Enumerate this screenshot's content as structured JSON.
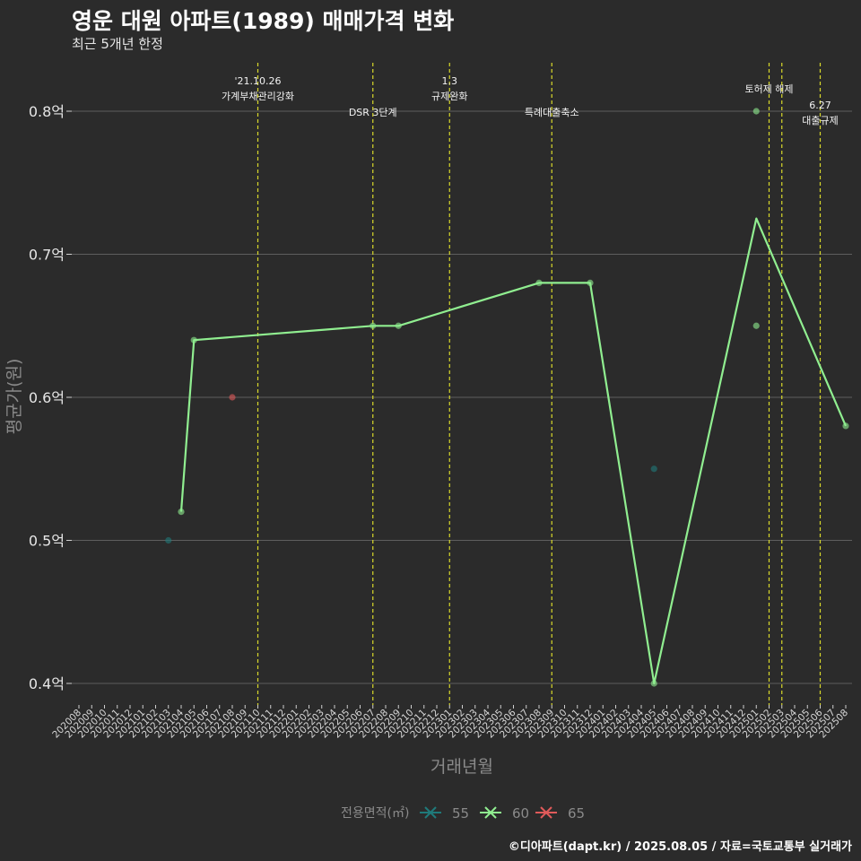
{
  "header": {
    "title": "영운 대원 아파트(1989) 매매가격 변화",
    "subtitle": "최근 5개년 한정"
  },
  "footer": {
    "credit": "©디아파트(dapt.kr) / 2025.08.05 / 자료=국토교통부 실거래가"
  },
  "colors": {
    "background": "#2b2b2b",
    "grid": "#5e5e5e",
    "event_line": "#d9d92b",
    "s55": "#1f7a7a",
    "s60": "#90ee90",
    "s65": "#e05a5a"
  },
  "chart_data": {
    "type": "line",
    "xlabel": "거래년월",
    "ylabel": "평균가(원)",
    "x_categories": [
      "202008",
      "202009",
      "202010",
      "202011",
      "202012",
      "202101",
      "202102",
      "202103",
      "202104",
      "202105",
      "202106",
      "202107",
      "202108",
      "202109",
      "202110",
      "202111",
      "202112",
      "202201",
      "202202",
      "202203",
      "202204",
      "202205",
      "202206",
      "202207",
      "202208",
      "202209",
      "202210",
      "202211",
      "202212",
      "202301",
      "202302",
      "202303",
      "202304",
      "202305",
      "202306",
      "202307",
      "202308",
      "202309",
      "202310",
      "202311",
      "202312",
      "202401",
      "202402",
      "202403",
      "202404",
      "202405",
      "202406",
      "202407",
      "202408",
      "202409",
      "202410",
      "202411",
      "202412",
      "202501",
      "202502",
      "202503",
      "202504",
      "202505",
      "202506",
      "202507",
      "202508"
    ],
    "y_ticks": [
      {
        "value": 0.4,
        "label": "0.4억"
      },
      {
        "value": 0.5,
        "label": "0.5억"
      },
      {
        "value": 0.6,
        "label": "0.6억"
      },
      {
        "value": 0.7,
        "label": "0.7억"
      },
      {
        "value": 0.8,
        "label": "0.8억"
      }
    ],
    "ylim": [
      0.385,
      0.835
    ],
    "grid": true,
    "legend": {
      "title": "전용면적(㎡)",
      "position": "bottom",
      "entries": [
        "55",
        "60",
        "65"
      ]
    },
    "series": [
      {
        "name": "55",
        "color_key": "s55",
        "line": false,
        "points": [
          {
            "x": "202103",
            "y": 0.5
          },
          {
            "x": "202405",
            "y": 0.55
          }
        ]
      },
      {
        "name": "60",
        "color_key": "s60",
        "line": true,
        "line_points": [
          {
            "x": "202104",
            "y": 0.52
          },
          {
            "x": "202105",
            "y": 0.64
          },
          {
            "x": "202207",
            "y": 0.65
          },
          {
            "x": "202209",
            "y": 0.65
          },
          {
            "x": "202308",
            "y": 0.68
          },
          {
            "x": "202312",
            "y": 0.68
          },
          {
            "x": "202405",
            "y": 0.4
          },
          {
            "x": "202501",
            "y": 0.725
          },
          {
            "x": "202508",
            "y": 0.58
          }
        ],
        "points": [
          {
            "x": "202104",
            "y": 0.52
          },
          {
            "x": "202105",
            "y": 0.64
          },
          {
            "x": "202207",
            "y": 0.65
          },
          {
            "x": "202209",
            "y": 0.65
          },
          {
            "x": "202308",
            "y": 0.68
          },
          {
            "x": "202312",
            "y": 0.68
          },
          {
            "x": "202405",
            "y": 0.4
          },
          {
            "x": "202501",
            "y": 0.8
          },
          {
            "x": "202501",
            "y": 0.65
          },
          {
            "x": "202508",
            "y": 0.58
          }
        ]
      },
      {
        "name": "65",
        "color_key": "s65",
        "line": false,
        "points": [
          {
            "x": "202108",
            "y": 0.6
          }
        ]
      }
    ],
    "events": [
      {
        "x": "202110",
        "offset": 0.0,
        "lines": [
          "'21.10.26",
          "가계부채관리강화"
        ],
        "level": "upper"
      },
      {
        "x": "202207",
        "offset": 0.0,
        "lines": [
          "DSR 3단계"
        ],
        "level": "lower"
      },
      {
        "x": "202301",
        "offset": 0.0,
        "lines": [
          "1.3",
          "규제완화"
        ],
        "level": "upper"
      },
      {
        "x": "202309",
        "offset": 0.0,
        "lines": [
          "특례대출축소"
        ],
        "level": "lower"
      },
      {
        "x": "202502",
        "offset": 0.0,
        "lines": [
          "토허제 해제"
        ],
        "level": "mid"
      },
      {
        "x": "202503",
        "offset": 0.0,
        "lines": [],
        "level": "none"
      },
      {
        "x": "202506",
        "offset": 0.0,
        "lines": [
          "6.27",
          "대출규제"
        ],
        "level": "right"
      }
    ]
  }
}
